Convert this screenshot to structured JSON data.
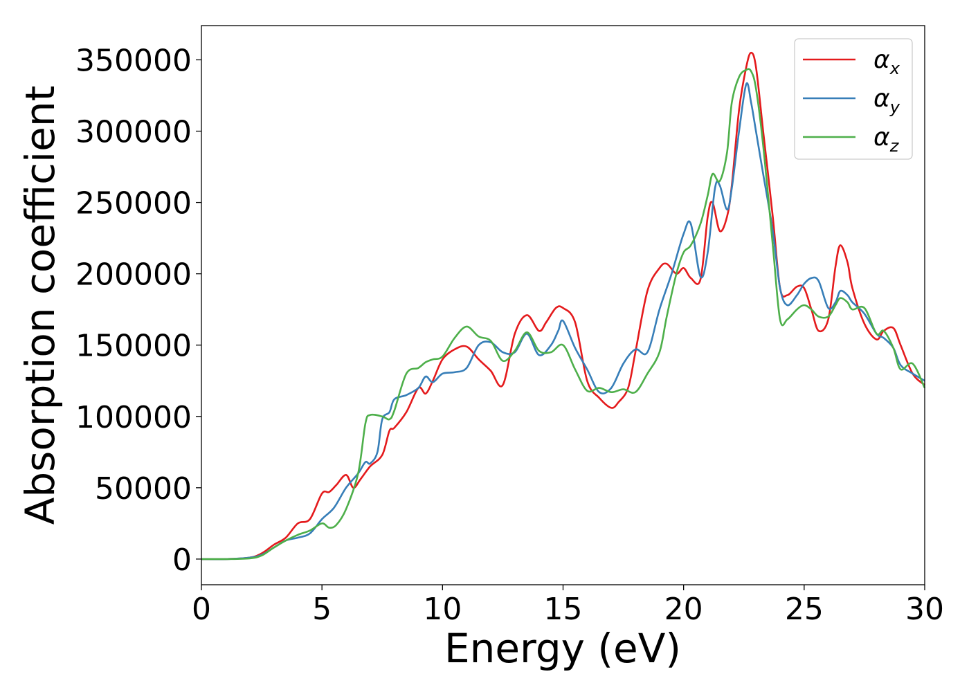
{
  "chart_data": {
    "type": "line",
    "title": "",
    "xlabel": "Energy (eV)",
    "ylabel": "Absorption coefficient",
    "xlim": [
      0,
      30
    ],
    "ylim": [
      -18000,
      374000
    ],
    "xticks": [
      0,
      5,
      10,
      15,
      20,
      25,
      30
    ],
    "yticks": [
      0,
      50000,
      100000,
      150000,
      200000,
      250000,
      300000,
      350000
    ],
    "grid": false,
    "legend": "top-right",
    "series": [
      {
        "name": "α_x",
        "label_main": "α",
        "label_sub": "x",
        "color": "#e41a1c",
        "x": [
          0,
          1,
          2,
          2.5,
          3,
          3.5,
          4,
          4.5,
          5,
          5.3,
          5.6,
          6,
          6.3,
          6.6,
          7,
          7.5,
          7.8,
          8,
          8.5,
          9,
          9.3,
          9.6,
          10,
          10.5,
          11,
          11.5,
          12,
          12.5,
          13,
          13.5,
          14,
          14.3,
          14.7,
          15,
          15.5,
          16,
          16.5,
          17,
          17.3,
          17.7,
          18,
          18.5,
          19,
          19.3,
          19.7,
          20,
          20.3,
          20.7,
          21,
          21.2,
          21.5,
          21.8,
          22,
          22.3,
          22.6,
          22.8,
          23,
          23.3,
          23.7,
          24,
          24.3,
          24.7,
          25,
          25.3,
          25.6,
          26,
          26.3,
          26.5,
          26.8,
          27,
          27.5,
          28,
          28.3,
          28.7,
          29,
          29.5,
          30
        ],
        "y": [
          0,
          0,
          1000,
          4000,
          10000,
          15000,
          25000,
          28000,
          46000,
          47000,
          52000,
          59000,
          50000,
          56000,
          65000,
          73000,
          90000,
          92000,
          103000,
          120000,
          116000,
          125000,
          140000,
          147000,
          149000,
          140000,
          132000,
          122000,
          158000,
          171000,
          160000,
          166000,
          176000,
          176000,
          166000,
          125000,
          113000,
          106000,
          110000,
          120000,
          145000,
          188000,
          204000,
          207000,
          200000,
          204000,
          197000,
          196000,
          240000,
          250000,
          230000,
          240000,
          262000,
          315000,
          345000,
          355000,
          345000,
          300000,
          240000,
          190000,
          185000,
          191000,
          190000,
          175000,
          160000,
          168000,
          205000,
          220000,
          208000,
          190000,
          165000,
          154000,
          160000,
          162000,
          150000,
          130000,
          122000
        ]
      },
      {
        "name": "α_y",
        "label_main": "α",
        "label_sub": "y",
        "color": "#377eb8",
        "x": [
          0,
          1,
          2,
          2.5,
          3,
          3.5,
          4,
          4.5,
          5,
          5.5,
          6,
          6.5,
          6.8,
          7,
          7.3,
          7.5,
          7.8,
          8,
          8.5,
          9,
          9.3,
          9.6,
          10,
          10.5,
          11,
          11.5,
          12,
          12.5,
          13,
          13.5,
          14,
          14.5,
          14.8,
          15,
          15.5,
          16,
          16.5,
          17,
          17.5,
          18,
          18.5,
          19,
          19.5,
          20,
          20.3,
          20.7,
          21,
          21.3,
          21.5,
          21.8,
          22,
          22.3,
          22.6,
          22.8,
          23,
          23.3,
          23.7,
          24,
          24.3,
          24.7,
          25,
          25.3,
          25.6,
          26,
          26.3,
          26.5,
          26.8,
          27,
          27.5,
          28,
          28.3,
          28.7,
          29,
          29.5,
          30
        ],
        "y": [
          0,
          0,
          1000,
          3000,
          8000,
          13000,
          15000,
          18000,
          28000,
          36000,
          50000,
          60000,
          68000,
          67000,
          75000,
          98000,
          103000,
          112000,
          115000,
          120000,
          128000,
          124000,
          130000,
          131000,
          134000,
          150000,
          152000,
          145000,
          145000,
          158000,
          143000,
          150000,
          160000,
          167000,
          148000,
          133000,
          117000,
          120000,
          137000,
          147000,
          145000,
          175000,
          200000,
          228000,
          235000,
          198000,
          215000,
          260000,
          262000,
          245000,
          260000,
          300000,
          333000,
          320000,
          300000,
          270000,
          230000,
          190000,
          178000,
          185000,
          193000,
          197000,
          195000,
          176000,
          180000,
          188000,
          185000,
          180000,
          172000,
          158000,
          155000,
          148000,
          136000,
          130000,
          125000
        ]
      },
      {
        "name": "α_z",
        "label_main": "α",
        "label_sub": "z",
        "color": "#4daf4a",
        "x": [
          0,
          1,
          2,
          2.5,
          3,
          3.5,
          4,
          4.5,
          5,
          5.3,
          5.6,
          6,
          6.5,
          6.8,
          7,
          7.5,
          7.8,
          8,
          8.5,
          9,
          9.3,
          9.6,
          10,
          10.5,
          11,
          11.5,
          12,
          12.5,
          13,
          13.5,
          14,
          14.5,
          15,
          15.5,
          16,
          16.5,
          17,
          17.5,
          18,
          18.5,
          19,
          19.3,
          19.7,
          20,
          20.3,
          20.7,
          21,
          21.2,
          21.5,
          21.8,
          22,
          22.3,
          22.6,
          22.8,
          23,
          23.3,
          23.7,
          24,
          24.3,
          24.7,
          25,
          25.3,
          25.6,
          26,
          26.3,
          26.5,
          26.8,
          27,
          27.5,
          28,
          28.3,
          28.7,
          29,
          29.5,
          30
        ],
        "y": [
          0,
          0,
          500,
          2500,
          8000,
          13000,
          17000,
          20000,
          25000,
          22000,
          24000,
          35000,
          60000,
          95000,
          101000,
          100000,
          98000,
          104000,
          130000,
          134000,
          138000,
          140000,
          142000,
          155000,
          163000,
          156000,
          153000,
          139000,
          146000,
          159000,
          146000,
          145000,
          150000,
          133000,
          118000,
          120000,
          117000,
          119000,
          117000,
          130000,
          145000,
          170000,
          200000,
          215000,
          220000,
          235000,
          255000,
          270000,
          265000,
          285000,
          320000,
          338000,
          343000,
          342000,
          330000,
          290000,
          220000,
          168000,
          168000,
          175000,
          178000,
          175000,
          170000,
          170000,
          178000,
          183000,
          180000,
          175000,
          176000,
          158000,
          160000,
          148000,
          133000,
          137000,
          120000
        ]
      }
    ]
  }
}
